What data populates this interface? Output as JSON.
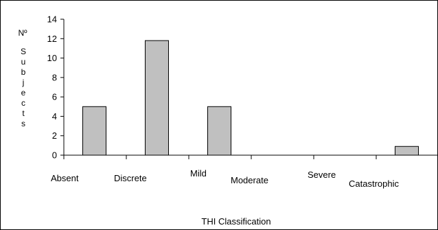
{
  "chart_data": {
    "type": "bar",
    "title": "",
    "xlabel": "THI Classification",
    "ylabel_lines": [
      "Nº",
      "S",
      "u",
      "b",
      "j",
      "e",
      "c",
      "t",
      "s"
    ],
    "categories": [
      "Absent",
      "Discrete",
      "Mild",
      "Moderate",
      "Severe",
      "Catastrophic"
    ],
    "values": [
      5,
      11.8,
      5,
      0,
      0,
      0.9
    ],
    "ylim": [
      0,
      14
    ],
    "yticks": [
      "0",
      "2",
      "4",
      "6",
      "8",
      "10",
      "12",
      "14"
    ],
    "grid": false,
    "legend": "none",
    "bar_color": "#c0c0c0",
    "border_color": "#000000"
  }
}
